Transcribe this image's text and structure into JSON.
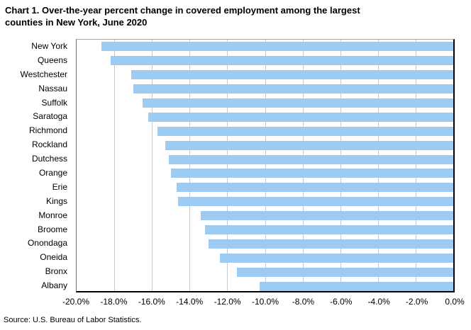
{
  "header": {
    "title_lines": [
      "Chart 1. Over-the-year percent change in covered employment among the largest",
      "counties in New York, June 2020"
    ]
  },
  "footer": {
    "source": "Source: U.S. Bureau of Labor Statistics."
  },
  "colors": {
    "bar": "#9dcbf2",
    "gridline": "#c9c9c9",
    "axis": "#000000",
    "plot_border": "#a6a6a6"
  },
  "chart_data": {
    "type": "bar",
    "orientation": "horizontal",
    "title": "Chart 1. Over-the-year percent change in covered employment among the largest counties in New York, June 2020",
    "categories": [
      "New York",
      "Queens",
      "Westchester",
      "Nassau",
      "Suffolk",
      "Saratoga",
      "Richmond",
      "Rockland",
      "Dutchess",
      "Orange",
      "Erie",
      "Kings",
      "Monroe",
      "Broome",
      "Onondaga",
      "Oneida",
      "Bronx",
      "Albany"
    ],
    "values": [
      -18.7,
      -18.2,
      -17.1,
      -17.0,
      -16.5,
      -16.2,
      -15.7,
      -15.3,
      -15.1,
      -15.0,
      -14.7,
      -14.6,
      -13.4,
      -13.2,
      -13.0,
      -12.4,
      -11.5,
      -10.3
    ],
    "value_unit": "percent",
    "xlabel": "",
    "ylabel": "",
    "xlim": [
      -20,
      0
    ],
    "xtick_labels": [
      "-20.0%",
      "-18.0%",
      "-16.0%",
      "-14.0%",
      "-12.0%",
      "-10.0%",
      "-8.0%",
      "-6.0%",
      "-4.0%",
      "-2.0%",
      "0.0%"
    ],
    "grid": "vertical",
    "legend": "none",
    "bars_anchor": "right edge at 0.0%"
  }
}
